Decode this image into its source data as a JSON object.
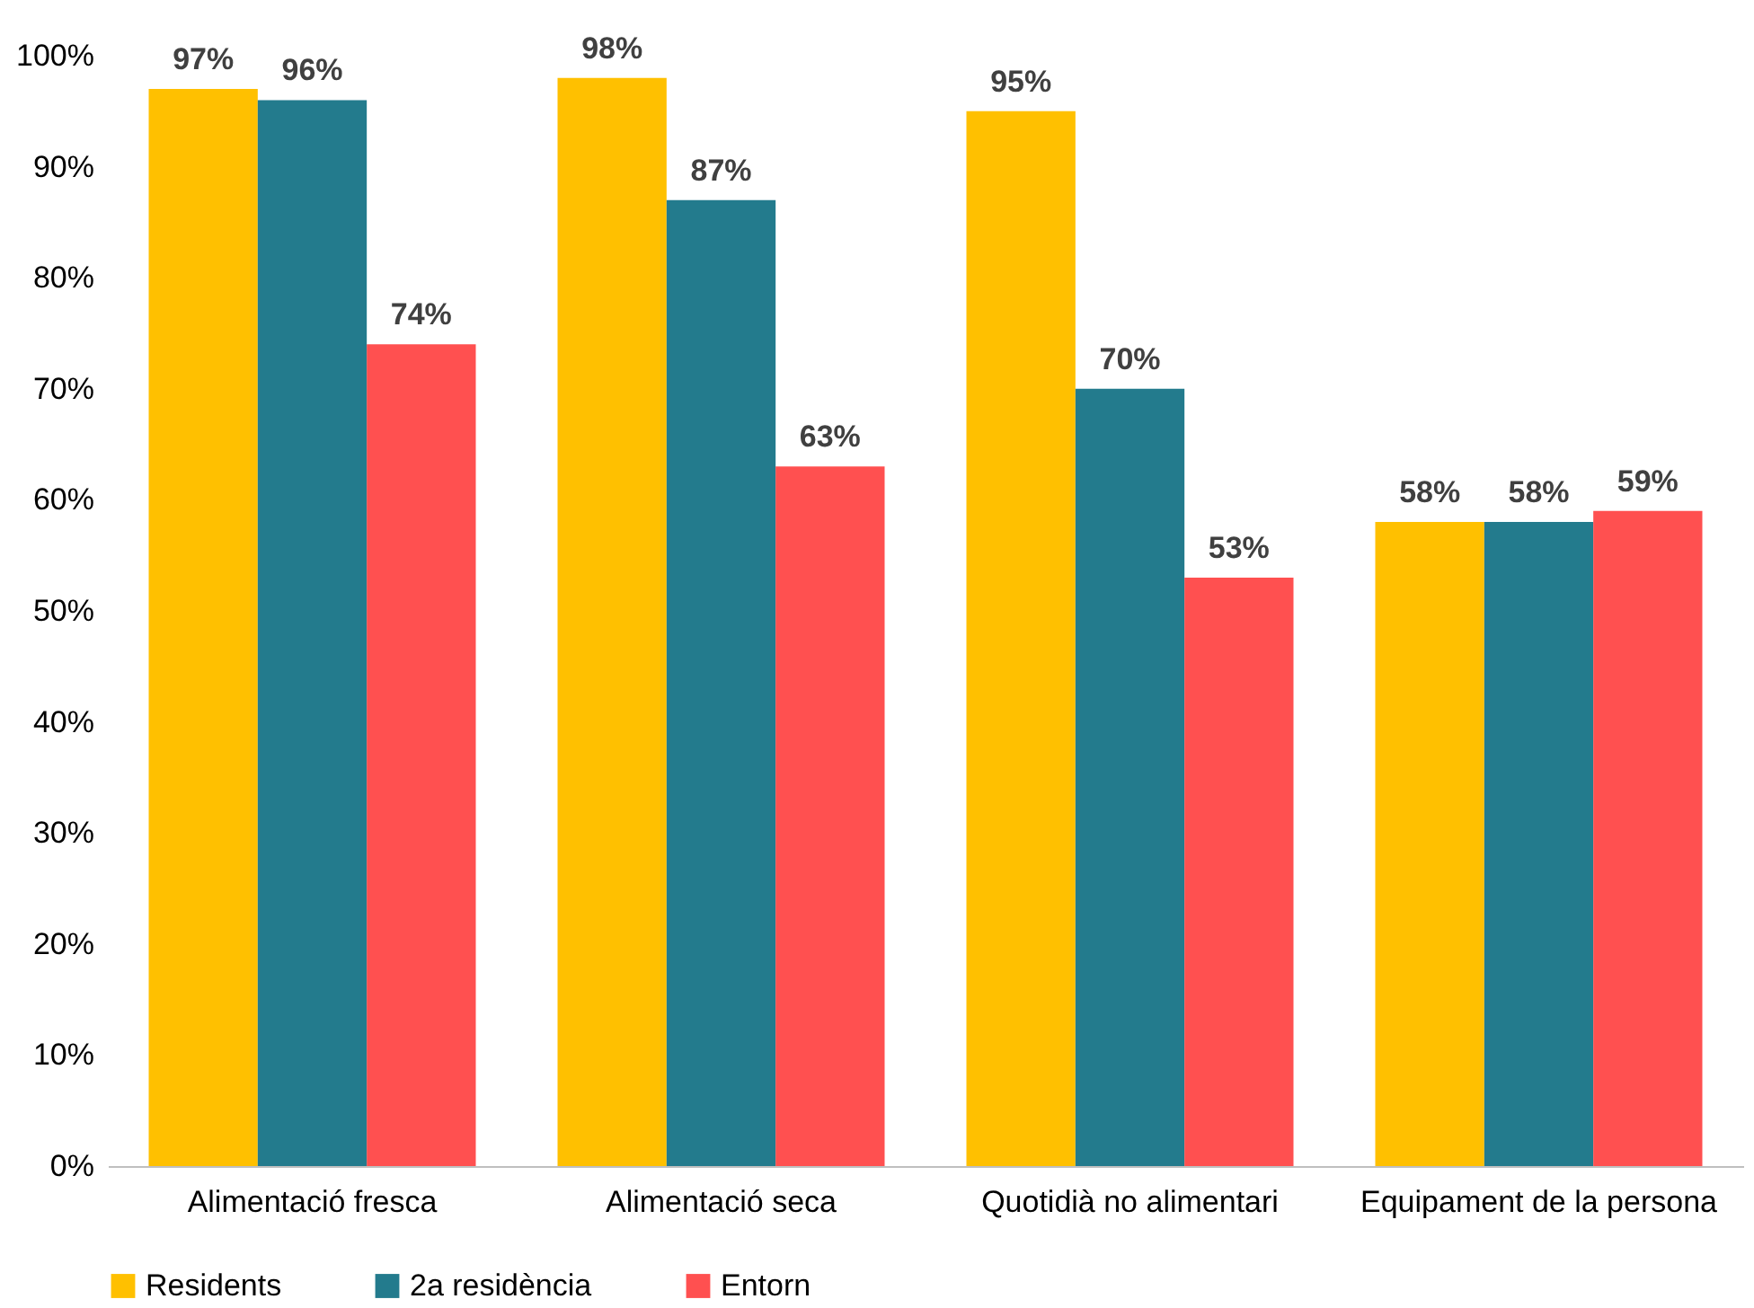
{
  "chart_data": {
    "type": "bar",
    "categories": [
      "Alimentació fresca",
      "Alimentació seca",
      "Quotidià no alimentari",
      "Equipament de la persona"
    ],
    "series": [
      {
        "name": "Residents",
        "color": "#ffc000",
        "values": [
          97,
          98,
          95,
          58
        ],
        "value_labels": [
          "97%",
          "98%",
          "95%",
          "58%"
        ]
      },
      {
        "name": "2a residència",
        "color": "#237b8d",
        "values": [
          96,
          87,
          70,
          58
        ],
        "value_labels": [
          "96%",
          "87%",
          "70%",
          "58%"
        ]
      },
      {
        "name": "Entorn",
        "color": "#ff5050",
        "values": [
          74,
          63,
          53,
          59
        ],
        "value_labels": [
          "74%",
          "63%",
          "53%",
          "59%"
        ]
      }
    ],
    "ylim": [
      0,
      100
    ],
    "yticks": [
      {
        "value": 0,
        "label": "0%"
      },
      {
        "value": 10,
        "label": "10%"
      },
      {
        "value": 20,
        "label": "20%"
      },
      {
        "value": 30,
        "label": "30%"
      },
      {
        "value": 40,
        "label": "40%"
      },
      {
        "value": 50,
        "label": "50%"
      },
      {
        "value": 60,
        "label": "60%"
      },
      {
        "value": 70,
        "label": "70%"
      },
      {
        "value": 80,
        "label": "80%"
      },
      {
        "value": 90,
        "label": "90%"
      },
      {
        "value": 100,
        "label": "100%"
      }
    ],
    "grid": false,
    "legend": "bottom"
  }
}
